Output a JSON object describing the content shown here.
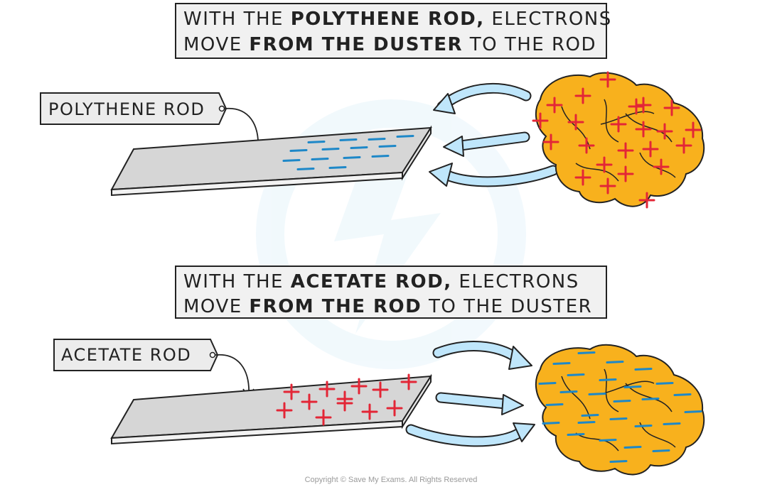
{
  "top_caption": {
    "line1": {
      "pre": "WITH THE ",
      "bold": "POLYTHENE ROD,",
      "post": " ELECTRONS"
    },
    "line2": {
      "pre": "MOVE ",
      "bold": "FROM THE  DUSTER",
      "post": " TO THE ROD"
    }
  },
  "bottom_caption": {
    "line1": {
      "pre": "WITH THE ",
      "bold": "ACETATE ROD,",
      "post": " ELECTRONS"
    },
    "line2": {
      "pre": "MOVE ",
      "bold": "FROM THE  ROD",
      "post": " TO THE DUSTER"
    }
  },
  "polythene_label": "POLYTHENE ROD",
  "acetate_label": "ACETATE ROD",
  "copyright": "Copyright © Save My Exams. All Rights Reserved",
  "colors": {
    "rod_top": "#d6d6d6",
    "rod_side": "#f2f2f2",
    "duster": "#f8b11d",
    "negative_charge": "#1e88c8",
    "positive_charge": "#e32636",
    "arrow": "#bfe6fb",
    "label_box": "#ececec",
    "outline": "#222222"
  },
  "icons": [
    "polythene-rod",
    "acetate-rod",
    "duster",
    "electron-arrow",
    "negative-charge",
    "positive-charge"
  ]
}
